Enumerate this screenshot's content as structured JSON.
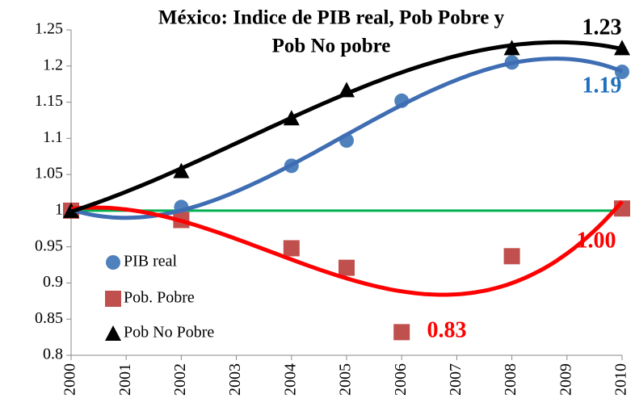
{
  "chart_data": {
    "type": "scatter",
    "title": [
      "México: Indice de PIB real, Pob Pobre y",
      "Pob No pobre"
    ],
    "xlim": [
      2000,
      2010
    ],
    "xticks": [
      2000,
      2001,
      2002,
      2003,
      2004,
      2005,
      2006,
      2007,
      2008,
      2009,
      2010
    ],
    "ylim": [
      0.8,
      1.25
    ],
    "yticks": [
      0.8,
      0.85,
      0.9,
      0.95,
      1,
      1.05,
      1.1,
      1.15,
      1.2,
      1.25
    ],
    "grid": false,
    "legend": "lower left",
    "trendline_degree": 3,
    "reference_line": {
      "value": 1,
      "color": "#00b050"
    },
    "series": [
      {
        "name": "PIB real",
        "marker": "circle",
        "color": "#4f81bd",
        "trend_color": "#3f6db3",
        "x": [
          2000,
          2002,
          2004,
          2005,
          2006,
          2008,
          2010
        ],
        "values": [
          1.0,
          1.005,
          1.062,
          1.097,
          1.152,
          1.205,
          1.192
        ]
      },
      {
        "name": "Pob. Pobre",
        "marker": "square",
        "color": "#c0504d",
        "trend_color": "#ff0000",
        "x": [
          2000,
          2002,
          2004,
          2005,
          2006,
          2008,
          2010
        ],
        "values": [
          1.0,
          0.987,
          0.948,
          0.921,
          0.832,
          0.937,
          1.003
        ]
      },
      {
        "name": "Pob No Pobre",
        "marker": "triangle",
        "color": "#000000",
        "trend_color": "#000000",
        "x": [
          2000,
          2002,
          2004,
          2005,
          2008,
          2010
        ],
        "values": [
          1.0,
          1.055,
          1.128,
          1.167,
          1.225,
          1.225
        ]
      }
    ],
    "annotations": [
      {
        "text": "1.23",
        "color": "#000000"
      },
      {
        "text": "1.19",
        "color": "#1f6fbf"
      },
      {
        "text": "1.00",
        "color": "#ff0000"
      },
      {
        "text": "0.83",
        "color": "#ff0000"
      }
    ]
  }
}
